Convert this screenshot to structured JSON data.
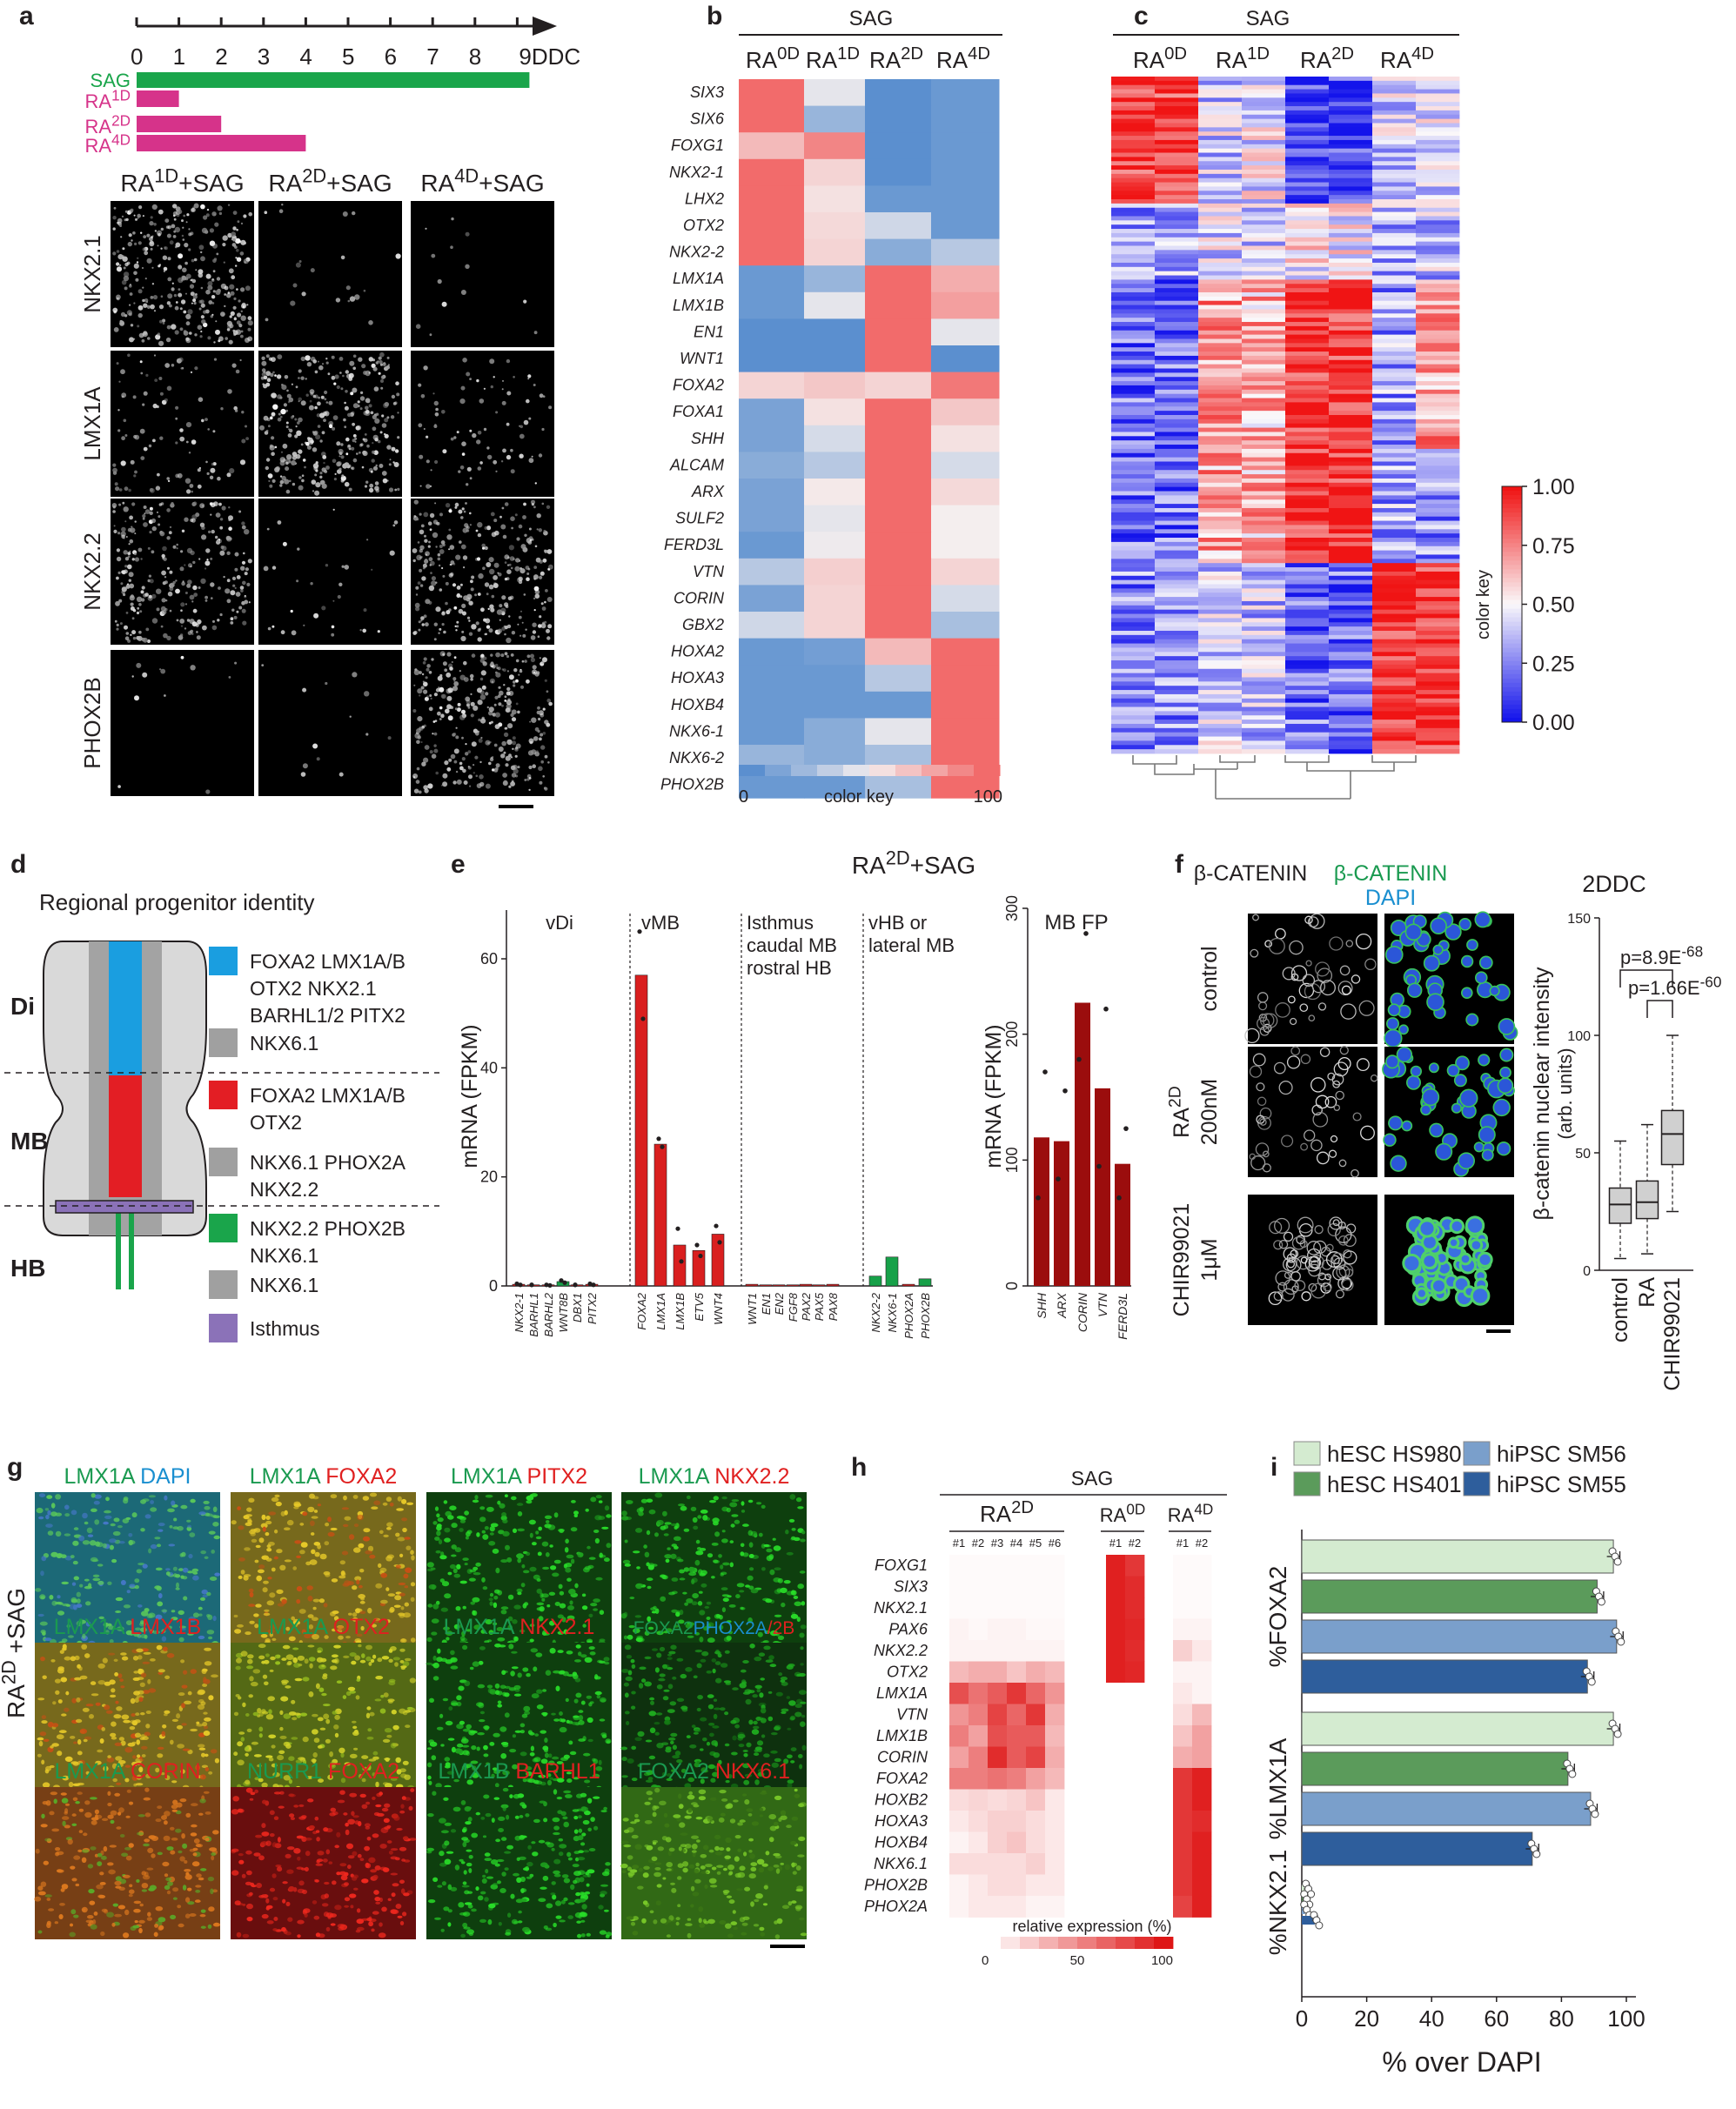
{
  "panel_letters": [
    "a",
    "b",
    "c",
    "d",
    "e",
    "f",
    "g",
    "h",
    "i"
  ],
  "colors": {
    "sag_bar": "#1aa54b",
    "ra_bar": "#d6338a",
    "heat_high": "#f26b6b",
    "heat_low": "#5b8fcf",
    "green_text": "#1a9a50",
    "red_text": "#e02020",
    "blue_text": "#1a8fd0",
    "bar_red": "#d91f1f",
    "bar_darkred": "#9b0d0d",
    "bar_green": "#17a149"
  },
  "panel_a": {
    "timeline_ticks": [
      "0",
      "1",
      "2",
      "3",
      "4",
      "5",
      "6",
      "7",
      "8",
      "9DDC"
    ],
    "bars": [
      {
        "label": "SAG",
        "end_day": 9
      },
      {
        "label_main": "RA",
        "label_sup": "1D",
        "end_day": 1
      },
      {
        "label_main": "RA",
        "label_sup": "2D",
        "end_day": 2
      },
      {
        "label_main": "RA",
        "label_sup": "4D",
        "end_day": 4
      }
    ],
    "columns": [
      {
        "main": "RA",
        "sup": "1D",
        "suffix": "+SAG"
      },
      {
        "main": "RA",
        "sup": "2D",
        "suffix": "+SAG"
      },
      {
        "main": "RA",
        "sup": "4D",
        "suffix": "+SAG"
      }
    ],
    "rows": [
      "NKX2.1",
      "LMX1A",
      "NKX2.2",
      "PHOX2B"
    ],
    "signal": [
      [
        0.85,
        0.05,
        0.03
      ],
      [
        0.25,
        0.85,
        0.2
      ],
      [
        0.7,
        0.08,
        0.75
      ],
      [
        0.03,
        0.03,
        0.8
      ]
    ]
  },
  "panel_b": {
    "header": "SAG",
    "columns": [
      {
        "main": "RA",
        "sup": "0D"
      },
      {
        "main": "RA",
        "sup": "1D"
      },
      {
        "main": "RA",
        "sup": "2D"
      },
      {
        "main": "RA",
        "sup": "4D"
      }
    ],
    "genes": [
      "SIX3",
      "SIX6",
      "FOXG1",
      "NKX2-1",
      "LHX2",
      "OTX2",
      "NKX2-2",
      "LMX1A",
      "LMX1B",
      "EN1",
      "WNT1",
      "FOXA2",
      "FOXA1",
      "SHH",
      "ALCAM",
      "ARX",
      "SULF2",
      "FERD3L",
      "VTN",
      "CORIN",
      "GBX2",
      "HOXA2",
      "HOXA3",
      "HOXB4",
      "NKX6-1",
      "NKX6-2",
      "PHOX2B"
    ],
    "values": [
      [
        100,
        45,
        0,
        5
      ],
      [
        100,
        20,
        0,
        5
      ],
      [
        70,
        90,
        0,
        5
      ],
      [
        100,
        60,
        0,
        5
      ],
      [
        100,
        55,
        5,
        5
      ],
      [
        100,
        58,
        38,
        5
      ],
      [
        100,
        60,
        15,
        30
      ],
      [
        5,
        20,
        100,
        75
      ],
      [
        5,
        45,
        100,
        80
      ],
      [
        0,
        0,
        100,
        45
      ],
      [
        0,
        0,
        100,
        0
      ],
      [
        60,
        65,
        60,
        95
      ],
      [
        10,
        55,
        100,
        65
      ],
      [
        10,
        40,
        100,
        55
      ],
      [
        15,
        30,
        100,
        40
      ],
      [
        10,
        52,
        100,
        58
      ],
      [
        10,
        45,
        100,
        50
      ],
      [
        5,
        48,
        100,
        50
      ],
      [
        30,
        62,
        100,
        60
      ],
      [
        10,
        60,
        100,
        40
      ],
      [
        38,
        60,
        100,
        25
      ],
      [
        5,
        8,
        70,
        100
      ],
      [
        5,
        5,
        30,
        100
      ],
      [
        5,
        5,
        5,
        100
      ],
      [
        5,
        15,
        45,
        100
      ],
      [
        20,
        15,
        25,
        100
      ],
      [
        5,
        5,
        25,
        100
      ]
    ],
    "colorkey_label": "color key",
    "colorkey_min": "0",
    "colorkey_max": "100"
  },
  "panel_c": {
    "header": "SAG",
    "columns": [
      {
        "main": "RA",
        "sup": "0D"
      },
      {
        "main": "RA",
        "sup": "1D"
      },
      {
        "main": "RA",
        "sup": "2D"
      },
      {
        "main": "RA",
        "sup": "4D"
      }
    ],
    "colorkey_label": "color key",
    "colorkey_ticks": [
      "1.00",
      "0.75",
      "0.50",
      "0.25",
      "0.00"
    ]
  },
  "panel_d": {
    "title": "Regional progenitor identity",
    "regions": [
      "Di",
      "MB",
      "HB"
    ],
    "legend": [
      {
        "color": "#1a9ee0",
        "lines": [
          "FOXA2 LMX1A/B",
          "OTX2 NKX2.1",
          "BARHL1/2 PITX2"
        ]
      },
      {
        "color": "#a0a0a0",
        "lines": [
          "NKX6.1"
        ]
      },
      {
        "color": "#e31e24",
        "lines": [
          "FOXA2 LMX1A/B",
          "OTX2"
        ]
      },
      {
        "color": "#a0a0a0",
        "lines": [
          "NKX6.1 PHOX2A",
          "NKX2.2"
        ]
      },
      {
        "color": "#1aa54b",
        "lines": [
          "NKX2.2 PHOX2B",
          "NKX6.1"
        ]
      },
      {
        "color": "#a0a0a0",
        "lines": [
          "NKX6.1"
        ]
      },
      {
        "color": "#8b72b8",
        "lines": [
          "Isthmus"
        ]
      }
    ]
  },
  "panel_e": {
    "title_main": "RA",
    "title_sup": "2D",
    "title_suffix": "+SAG",
    "ylabel": "mRNA (FPKM)",
    "yticks": [
      "0",
      "20",
      "40",
      "60"
    ],
    "ylim": [
      0,
      68
    ],
    "groups": [
      "vDi",
      "vMB",
      "Isthmus",
      "caudal MB",
      "rostral HB",
      "vHB or",
      "lateral MB"
    ],
    "genes": [
      "NKX2-1",
      "BARHL1",
      "BARHL2",
      "WNT8B",
      "DBX1",
      "PITX2",
      "FOXA2",
      "LMX1A",
      "LMX1B",
      "ETV5",
      "WNT4",
      "WNT1",
      "EN1",
      "EN2",
      "FGF8",
      "PAX2",
      "PAX5",
      "PAX8",
      "NKX2-2",
      "NKX6-1",
      "PHOX2A",
      "PHOX2B"
    ],
    "values": [
      0.3,
      0.2,
      0.2,
      0.8,
      0.2,
      0.3,
      57,
      26,
      7.5,
      6.5,
      9.5,
      0.3,
      0.2,
      0.2,
      0.2,
      0.3,
      0.2,
      0.3,
      1.8,
      5.3,
      0.3,
      1.3
    ],
    "bar_colors": [
      "red",
      "red",
      "red",
      "green",
      "red",
      "red",
      "red",
      "red",
      "red",
      "red",
      "red",
      "red",
      "red",
      "red",
      "red",
      "red",
      "red",
      "red",
      "green",
      "green",
      "red",
      "green"
    ],
    "dots": [
      [
        0.4,
        0.2
      ],
      [
        0.2,
        0.2
      ],
      [
        0.2,
        0.1
      ],
      [
        1.0,
        0.6
      ],
      [
        0.2,
        0.2
      ],
      [
        0.4,
        0.2
      ],
      [
        65,
        49
      ],
      [
        27,
        25.5
      ],
      [
        10.5,
        4.5
      ],
      [
        7.5,
        5.5
      ],
      [
        11,
        8
      ]
    ],
    "inset_title": "MB FP",
    "inset_ylabel": "mRNA (FPKM)",
    "inset_yticks": [
      "0",
      "100",
      "200",
      "300"
    ],
    "inset_ylim": [
      0,
      300
    ],
    "inset_genes": [
      "SHH",
      "ARX",
      "CORIN",
      "VTN",
      "FERD3L"
    ],
    "inset_values": [
      118,
      115,
      225,
      157,
      97
    ],
    "inset_dots": [
      [
        170,
        70
      ],
      [
        155,
        85
      ],
      [
        280,
        180
      ],
      [
        220,
        95
      ],
      [
        125,
        70
      ]
    ]
  },
  "panel_f": {
    "col_headers": [
      "β-CATENIN",
      "β-CATENIN",
      "DAPI"
    ],
    "rows": [
      {
        "lines": [
          "control"
        ]
      },
      {
        "lines": [
          "RA",
          "200nM"
        ],
        "sup": "2D"
      },
      {
        "lines": [
          "CHIR99021",
          "1μM"
        ]
      }
    ],
    "box_title": "2DDC",
    "ylabel": "β-catenin nuclear intensity",
    "ylabel2": "(arb. units)",
    "yticks": [
      "0",
      "50",
      "100",
      "150"
    ],
    "ylim": [
      0,
      150
    ],
    "categories": [
      "control",
      "RA",
      "CHIR99021"
    ],
    "boxes": [
      {
        "min": 5,
        "q1": 20,
        "median": 28,
        "q3": 35,
        "max": 55
      },
      {
        "min": 7,
        "q1": 22,
        "median": 29,
        "q3": 38,
        "max": 62
      },
      {
        "min": 25,
        "q1": 45,
        "median": 58,
        "q3": 68,
        "max": 100
      }
    ],
    "pvals": [
      {
        "text": "p=8.9E",
        "sup": "-68"
      },
      {
        "text": "p=1.66E",
        "sup": "-60"
      }
    ]
  },
  "panel_g": {
    "side_main": "RA",
    "side_sup": "2D",
    "side_suffix": " +SAG",
    "tiles": [
      {
        "labels": [
          [
            "LMX1A ",
            "green"
          ],
          [
            "DAPI",
            "blue"
          ]
        ],
        "style": "cyan"
      },
      {
        "labels": [
          [
            "LMX1A ",
            "green"
          ],
          [
            "FOXA2",
            "red"
          ]
        ],
        "style": "yellow"
      },
      {
        "labels": [
          [
            "LMX1A ",
            "green"
          ],
          [
            "PITX2",
            "red"
          ]
        ],
        "style": "green"
      },
      {
        "labels": [
          [
            "LMX1A ",
            "green"
          ],
          [
            "NKX2.2",
            "red"
          ]
        ],
        "style": "green"
      },
      {
        "labels": [
          [
            "LMX1A ",
            "green"
          ],
          [
            "LMX1B",
            "red"
          ]
        ],
        "style": "yellow"
      },
      {
        "labels": [
          [
            "LMX1A ",
            "green"
          ],
          [
            "OTX2",
            "red"
          ]
        ],
        "style": "yellowgreen"
      },
      {
        "labels": [
          [
            "LMX1A ",
            "green"
          ],
          [
            "NKX2.1",
            "red"
          ]
        ],
        "style": "green"
      },
      {
        "labels": [
          [
            "FOXA2",
            "green"
          ],
          [
            "PHOX2A",
            "blue"
          ],
          [
            "/2B",
            "red"
          ]
        ],
        "style": "greendark"
      },
      {
        "labels": [
          [
            "LMX1A ",
            "green"
          ],
          [
            "CORIN",
            "red"
          ]
        ],
        "style": "orange"
      },
      {
        "labels": [
          [
            "NURR1 ",
            "green"
          ],
          [
            "FOXA2",
            "red"
          ]
        ],
        "style": "red"
      },
      {
        "labels": [
          [
            "LMX1B ",
            "green"
          ],
          [
            "BARHL1",
            "red"
          ]
        ],
        "style": "green"
      },
      {
        "labels": [
          [
            "FOXA2 ",
            "green"
          ],
          [
            "NKX6.1",
            "red"
          ]
        ],
        "style": "greenlight"
      }
    ]
  },
  "panel_h": {
    "header": "SAG",
    "groups": [
      {
        "main": "RA",
        "sup": "2D",
        "reps": [
          "#1",
          "#2",
          "#3",
          "#4",
          "#5",
          "#6"
        ]
      },
      {
        "main": "RA",
        "sup": "0D",
        "reps": [
          "#1",
          "#2"
        ]
      },
      {
        "main": "RA",
        "sup": "4D",
        "reps": [
          "#1",
          "#2"
        ]
      }
    ],
    "genes": [
      "FOXG1",
      "SIX3",
      "NKX2.1",
      "PAX6",
      "NKX2.2",
      "OTX2",
      "LMX1A",
      "VTN",
      "LMX1B",
      "CORIN",
      "FOXA2",
      "HOXB2",
      "HOXA3",
      "HOXB4",
      "NKX6.1",
      "PHOX2B",
      "PHOX2A"
    ],
    "values": [
      [
        2,
        2,
        2,
        2,
        2,
        2,
        95,
        85,
        2,
        2
      ],
      [
        2,
        2,
        2,
        2,
        2,
        2,
        95,
        90,
        2,
        2
      ],
      [
        2,
        2,
        2,
        2,
        2,
        2,
        95,
        90,
        2,
        2
      ],
      [
        5,
        3,
        5,
        5,
        3,
        3,
        95,
        92,
        5,
        5
      ],
      [
        5,
        5,
        5,
        5,
        5,
        5,
        95,
        90,
        20,
        10
      ],
      [
        30,
        35,
        35,
        25,
        35,
        30,
        95,
        92,
        5,
        5
      ],
      [
        75,
        60,
        70,
        85,
        65,
        45,
        0,
        0,
        10,
        5
      ],
      [
        45,
        55,
        80,
        65,
        85,
        35,
        0,
        0,
        15,
        30
      ],
      [
        55,
        40,
        75,
        70,
        70,
        30,
        0,
        0,
        25,
        40
      ],
      [
        40,
        55,
        90,
        70,
        80,
        35,
        0,
        0,
        35,
        40
      ],
      [
        55,
        55,
        60,
        55,
        40,
        30,
        0,
        0,
        85,
        95
      ],
      [
        15,
        18,
        15,
        18,
        25,
        10,
        0,
        0,
        85,
        95
      ],
      [
        10,
        15,
        20,
        20,
        15,
        10,
        0,
        0,
        85,
        90
      ],
      [
        5,
        10,
        20,
        25,
        15,
        10,
        0,
        0,
        85,
        95
      ],
      [
        15,
        15,
        15,
        15,
        20,
        10,
        0,
        0,
        85,
        95
      ],
      [
        5,
        10,
        15,
        15,
        10,
        10,
        0,
        0,
        85,
        95
      ],
      [
        5,
        10,
        10,
        10,
        5,
        5,
        0,
        0,
        80,
        95
      ]
    ],
    "colorkey_label": "relative expression (%)",
    "colorkey_ticks": [
      "0",
      "50",
      "100"
    ]
  },
  "panel_i": {
    "legend": [
      {
        "label": "hESC HS980",
        "color": "#d4ebd0"
      },
      {
        "label": "hESC HS401",
        "color": "#5b9b5b"
      },
      {
        "label": "hiPSC SM56",
        "color": "#7a9fcb"
      },
      {
        "label": "hiPSC SM55",
        "color": "#2e5e9c"
      }
    ],
    "xlabel": "% over DAPI",
    "xticks": [
      "0",
      "20",
      "40",
      "60",
      "80",
      "100"
    ],
    "xlim": [
      0,
      100
    ],
    "groups": [
      {
        "label": "%FOXA2",
        "values": [
          96,
          91,
          97,
          88
        ]
      },
      {
        "label": "%LMX1A",
        "values": [
          96,
          82,
          89,
          71
        ]
      },
      {
        "label": "%NKX2.1",
        "values": [
          1.5,
          1.0,
          1.0,
          4.0
        ]
      }
    ]
  }
}
